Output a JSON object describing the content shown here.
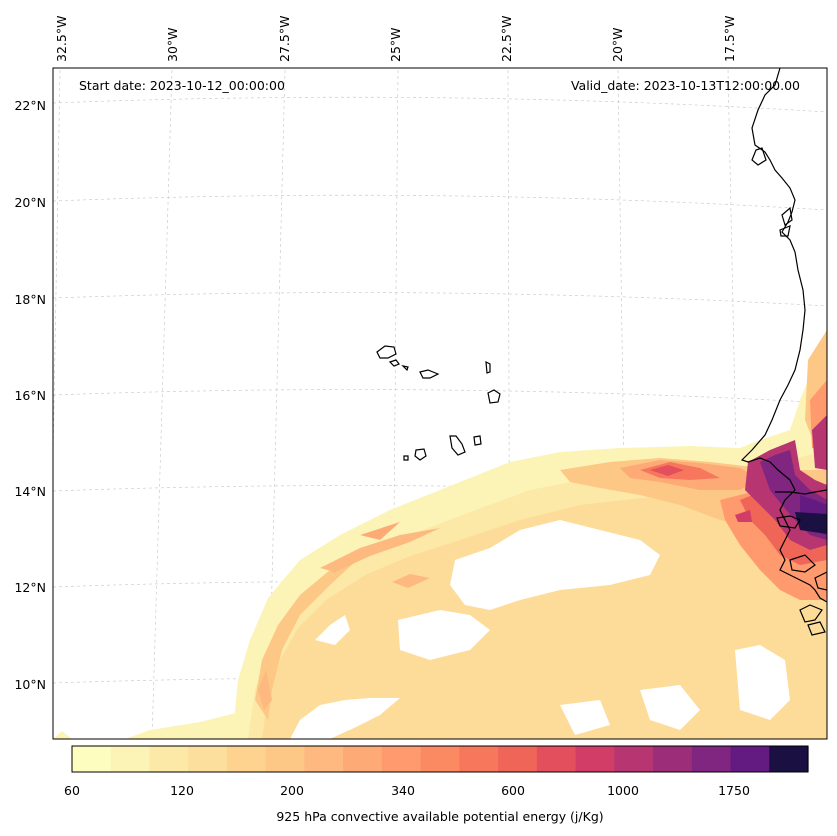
{
  "header": {
    "start_date": "Start date: 2023-10-12_00:00:00",
    "valid_date": "Valid_date: 2023-10-13T12:00:00.00"
  },
  "map": {
    "lon_labels": [
      "32.5°W",
      "30°W",
      "27.5°W",
      "25°W",
      "22.5°W",
      "20°W",
      "17.5°W"
    ],
    "lat_labels": [
      "22°N",
      "20°N",
      "18°N",
      "16°N",
      "14°N",
      "12°N",
      "10°N"
    ],
    "gridlines": true
  },
  "colorbar": {
    "label": "925 hPa convective available potential energy (j/Kg)",
    "tick_labels": [
      "60",
      "120",
      "200",
      "340",
      "600",
      "1000",
      "1750"
    ],
    "colors": [
      "#fcfdbf",
      "#fcf4b6",
      "#fce9a8",
      "#fcdf9c",
      "#fdd38f",
      "#fdc786",
      "#fdb97f",
      "#fdaa77",
      "#fe9a6e",
      "#fb8a63",
      "#f7775c",
      "#ef6558",
      "#e34f5d",
      "#d13d66",
      "#b73570",
      "#9c2e79",
      "#802580",
      "#631b82",
      "#1a1042"
    ],
    "legend_position": "bottom"
  }
}
